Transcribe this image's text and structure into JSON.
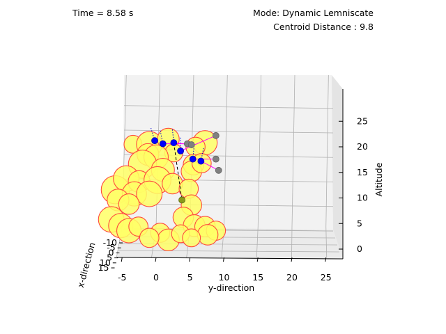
{
  "header": {
    "time_label": "Time = 8.58 s",
    "mode_label": "Mode: Dynamic Lemniscate",
    "centroid_label": "Centroid Distance : 9.8"
  },
  "colors": {
    "obstacle_fill": "#ffff66",
    "obstacle_edge": "#ff4a3d",
    "agent": "#0000ff",
    "leader": "#808080",
    "trail": "#0000cc",
    "link": "#ff00ff",
    "target": "#8a9a1a",
    "grid": "#b0b0b0",
    "pane": "#f2f2f2"
  },
  "chart_data": {
    "type": "scatter3d",
    "title": "",
    "xlabel": "x-direction",
    "ylabel": "y-direction",
    "zlabel": "Altitude",
    "x_ticks": [
      "-10",
      "-5",
      "0",
      "5",
      "10",
      "15"
    ],
    "y_ticks": [
      "-5",
      "0",
      "5",
      "10",
      "15",
      "20",
      "25"
    ],
    "z_ticks": [
      "0",
      "5",
      "10",
      "15",
      "20",
      "25"
    ],
    "y_range": [
      -5,
      27
    ],
    "z_range": [
      -2,
      28
    ],
    "series": [
      {
        "name": "obstacles",
        "kind": "sphere",
        "points": [
          {
            "y": -3.4,
            "z": 20.5,
            "r": 1.4
          },
          {
            "y": -1.0,
            "z": 20.5,
            "r": 2.0
          },
          {
            "y": 7.2,
            "z": 20.8,
            "r": 1.9
          },
          {
            "y": 1.8,
            "z": 21.5,
            "r": 1.7
          },
          {
            "y": 2.6,
            "z": 18.8,
            "r": 1.4
          },
          {
            "y": 5.8,
            "z": 20.0,
            "r": 1.5
          },
          {
            "y": -1.2,
            "z": 18.5,
            "r": 1.7
          },
          {
            "y": 0.0,
            "z": 18.0,
            "r": 1.9
          },
          {
            "y": 5.5,
            "z": 16.5,
            "r": 1.6
          },
          {
            "y": -2.0,
            "z": 16.6,
            "r": 2.2
          },
          {
            "y": 1.0,
            "z": 15.5,
            "r": 1.8
          },
          {
            "y": 5.2,
            "z": 15.2,
            "r": 1.6
          },
          {
            "y": 6.7,
            "z": 16.8,
            "r": 1.5
          },
          {
            "y": -6.0,
            "z": 11.6,
            "r": 2.2
          },
          {
            "y": -4.4,
            "z": 13.8,
            "r": 2.0
          },
          {
            "y": -2.5,
            "z": 13.2,
            "r": 1.7
          },
          {
            "y": 0.2,
            "z": 13.5,
            "r": 2.1
          },
          {
            "y": 2.4,
            "z": 12.8,
            "r": 1.6
          },
          {
            "y": -3.2,
            "z": 10.8,
            "r": 1.9
          },
          {
            "y": -1.0,
            "z": 10.8,
            "r": 2.0
          },
          {
            "y": 4.8,
            "z": 11.8,
            "r": 1.5
          },
          {
            "y": -5.6,
            "z": 9.6,
            "r": 1.7
          },
          {
            "y": -4.0,
            "z": 8.8,
            "r": 1.6
          },
          {
            "y": 5.2,
            "z": 8.6,
            "r": 1.6
          },
          {
            "y": -6.6,
            "z": 5.8,
            "r": 2.0
          },
          {
            "y": -5.2,
            "z": 4.6,
            "r": 1.9
          },
          {
            "y": -4.0,
            "z": 3.6,
            "r": 1.9
          },
          {
            "y": -2.6,
            "z": 4.4,
            "r": 1.5
          },
          {
            "y": 4.0,
            "z": 6.2,
            "r": 1.6
          },
          {
            "y": 5.6,
            "z": 4.6,
            "r": 1.7
          },
          {
            "y": 7.2,
            "z": 4.4,
            "r": 1.6
          },
          {
            "y": 8.8,
            "z": 3.6,
            "r": 1.5
          },
          {
            "y": 0.6,
            "z": 3.2,
            "r": 1.5
          },
          {
            "y": 1.8,
            "z": 1.8,
            "r": 1.7
          },
          {
            "y": -1.0,
            "z": 2.2,
            "r": 1.5
          },
          {
            "y": 3.6,
            "z": 3.0,
            "r": 1.4
          },
          {
            "y": 7.6,
            "z": 2.8,
            "r": 1.6
          },
          {
            "y": 5.2,
            "z": 2.2,
            "r": 1.4
          }
        ]
      },
      {
        "name": "agents",
        "kind": "point",
        "points": [
          {
            "y": -0.2,
            "z": 21.2
          },
          {
            "y": 1.0,
            "z": 20.6
          },
          {
            "y": 2.6,
            "z": 20.8
          },
          {
            "y": 3.6,
            "z": 19.2
          },
          {
            "y": 5.4,
            "z": 17.6
          },
          {
            "y": 6.6,
            "z": 17.2
          }
        ]
      },
      {
        "name": "leaders",
        "kind": "point",
        "points": [
          {
            "y": 4.6,
            "z": 20.6
          },
          {
            "y": 5.2,
            "z": 20.4
          },
          {
            "y": 8.8,
            "z": 22.2
          },
          {
            "y": 8.8,
            "z": 17.6
          },
          {
            "y": 9.2,
            "z": 15.4
          }
        ]
      },
      {
        "name": "target",
        "kind": "point",
        "points": [
          {
            "y": 3.8,
            "z": 9.6
          }
        ]
      }
    ]
  }
}
